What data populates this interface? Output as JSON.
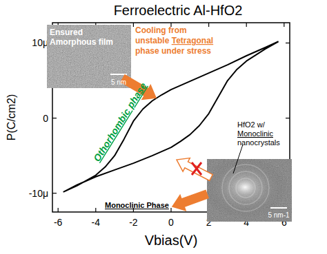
{
  "chart_data": {
    "type": "line",
    "title": "Ferroelectric Al-HfO2",
    "x_label": "Vbias(V)",
    "y_label": "P(C/cm2)",
    "color": "#000000",
    "grid": false,
    "xlim": [
      -6.3,
      6.3
    ],
    "ylim": [
      -1.25e-05,
      1.27e-05
    ],
    "xticks": [
      -6,
      -4,
      -2,
      0,
      2,
      4,
      6
    ],
    "yticks": [
      {
        "value": -1e-05,
        "label": "-10μ"
      },
      0,
      {
        "value": 1e-05,
        "label": "10μ"
      }
    ],
    "x": [
      5.7,
      5.0,
      4.0,
      3.0,
      2.0,
      1.0,
      0.0,
      -0.5,
      -1.0,
      -1.5,
      -2.0,
      -2.5,
      -3.0,
      -3.5,
      -4.0,
      -5.0,
      -5.7,
      -5.0,
      -4.0,
      -3.0,
      -2.0,
      -1.0,
      0.0,
      0.5,
      1.0,
      1.5,
      2.0,
      2.5,
      3.0,
      3.5,
      4.0,
      5.0,
      5.7
    ],
    "values": [
      1.02e-05,
      9.4e-06,
      8.3e-06,
      7.1e-06,
      6e-06,
      4.9e-06,
      3.8e-06,
      3.1e-06,
      2.3e-06,
      1.2e-06,
      -4e-07,
      -2.8e-06,
      -5e-06,
      -6.5e-06,
      -7.6e-06,
      -9e-06,
      -9.8e-06,
      -8.9e-06,
      -7.8e-06,
      -6.9e-06,
      -6e-06,
      -5e-06,
      -3.9e-06,
      -3.1e-06,
      -2.2e-06,
      -1e-06,
      6e-07,
      2.8e-06,
      5e-06,
      6.5e-06,
      7.6e-06,
      9.2e-06,
      1.02e-05
    ],
    "annotations": [
      {
        "lines": [
          "Ensured",
          "Amorphous film"
        ],
        "underlined": []
      },
      {
        "lines": [
          "5 nm"
        ],
        "underlined": []
      },
      {
        "lines": [
          "Cooling from",
          "unstable Tetragonal",
          "phase under stress"
        ],
        "underlined": [
          "Tetragonal"
        ]
      },
      {
        "lines": [
          "Othorhombic phase"
        ],
        "underlined": [
          "Othorhombic phase"
        ]
      },
      {
        "lines": [
          "HfO2 w/",
          "Monoclinic",
          "nanocrystals"
        ],
        "underlined": [
          "Monoclinic"
        ]
      },
      {
        "lines": [
          "5 nm-1"
        ],
        "underlined": []
      },
      {
        "lines": [
          "Monoclinic Phase"
        ],
        "underlined": [
          "Monoclinic Phase"
        ]
      }
    ]
  }
}
